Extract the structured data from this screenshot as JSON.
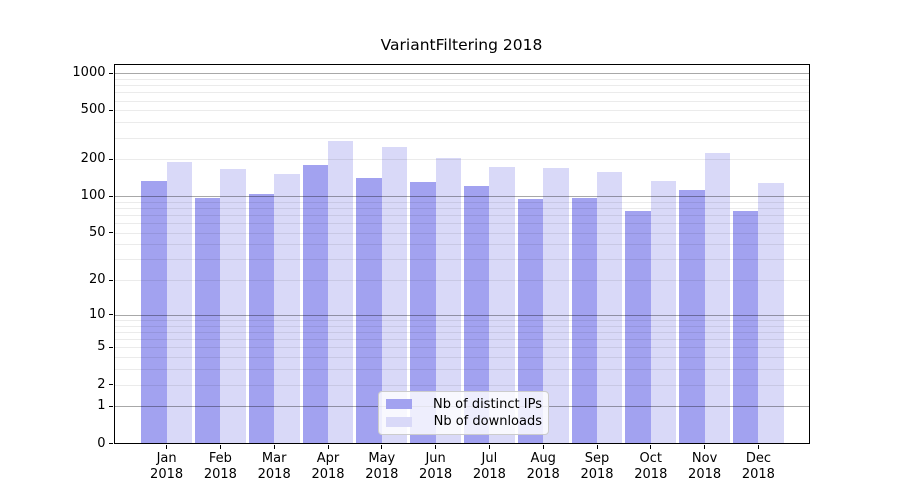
{
  "figure": {
    "title": "VariantFiltering 2018",
    "background_color": "#ffffff"
  },
  "chart_data": {
    "type": "bar",
    "title": "VariantFiltering 2018",
    "categories": [
      "Jan",
      "Feb",
      "Mar",
      "Apr",
      "May",
      "Jun",
      "Jul",
      "Aug",
      "Sep",
      "Oct",
      "Nov",
      "Dec"
    ],
    "category_year": "2018",
    "series": [
      {
        "name": "Nb of distinct IPs",
        "color": "#a2a2f0",
        "values": [
          132,
          96,
          104,
          178,
          142,
          130,
          122,
          95,
          96,
          75,
          113,
          75
        ]
      },
      {
        "name": "Nb of downloads",
        "color": "#d9d9f8",
        "values": [
          190,
          167,
          152,
          283,
          250,
          205,
          173,
          170,
          159,
          134,
          224,
          128
        ]
      }
    ],
    "yscale": "log10(value+1)",
    "yticks": [
      0,
      1,
      2,
      5,
      10,
      20,
      50,
      100,
      200,
      500,
      1000
    ],
    "ylim": [
      0,
      1200
    ],
    "xlabel": "",
    "ylabel": "",
    "grid": true,
    "grid_major_color": "#a8a8a8",
    "grid_minor_color": "#ebebeb",
    "legend_position": "bottom-center",
    "axis_color": "#000000"
  }
}
